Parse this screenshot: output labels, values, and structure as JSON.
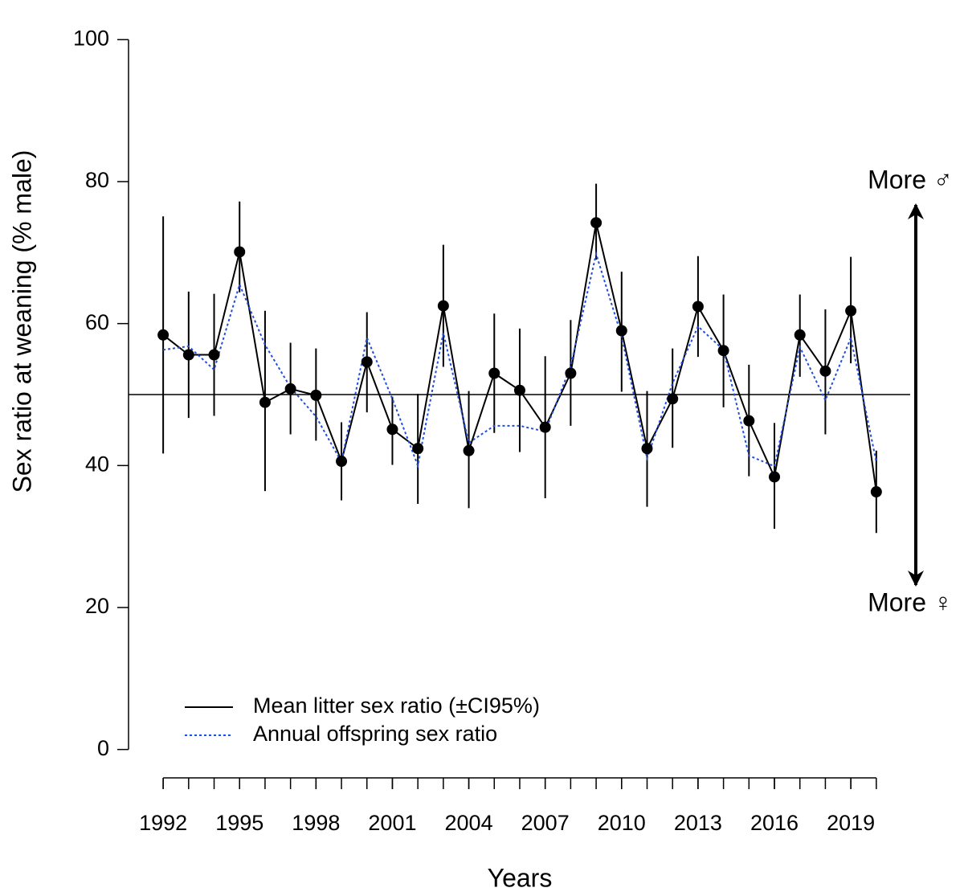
{
  "chart_data": {
    "type": "line",
    "y_label": "Sex ratio at weaning (% male)",
    "x_label": "Years",
    "x": [
      1992,
      1993,
      1994,
      1995,
      1996,
      1997,
      1998,
      1999,
      2000,
      2001,
      2002,
      2003,
      2004,
      2005,
      2006,
      2007,
      2008,
      2009,
      2010,
      2011,
      2012,
      2013,
      2014,
      2015,
      2016,
      2017,
      2018,
      2019,
      2020
    ],
    "series": [
      {
        "name": "Mean litter sex ratio (±CI95%)",
        "color": "#000000",
        "dash": "solid",
        "markers": true,
        "values": [
          58.4,
          55.6,
          55.6,
          70.1,
          48.9,
          50.8,
          49.9,
          40.6,
          54.6,
          45.1,
          42.4,
          62.5,
          42.1,
          53.0,
          50.6,
          45.4,
          53.0,
          74.2,
          59.0,
          42.4,
          49.4,
          62.4,
          56.2,
          46.3,
          38.4,
          58.4,
          53.3,
          61.8,
          36.3
        ],
        "lower": [
          41.7,
          46.7,
          47.0,
          64.4,
          36.4,
          44.4,
          43.5,
          35.1,
          47.5,
          40.1,
          34.6,
          53.9,
          34.0,
          44.6,
          41.9,
          35.4,
          45.6,
          69.0,
          50.4,
          34.2,
          42.5,
          55.3,
          48.2,
          38.5,
          31.1,
          52.5,
          44.4,
          54.4,
          30.5
        ],
        "upper": [
          75.1,
          64.5,
          64.2,
          77.2,
          61.8,
          57.3,
          56.5,
          46.1,
          61.6,
          49.7,
          50.1,
          71.1,
          50.5,
          61.4,
          59.3,
          55.4,
          60.5,
          79.7,
          67.3,
          50.5,
          56.5,
          69.5,
          64.1,
          54.2,
          46.0,
          64.1,
          62.0,
          69.4,
          42.1
        ]
      },
      {
        "name": "Annual offspring sex ratio",
        "color": "#1f4fe0",
        "dash": "dotted",
        "markers": false,
        "values": [
          56.3,
          56.8,
          53.5,
          65.5,
          57.0,
          51.0,
          46.9,
          40.5,
          58.0,
          49.4,
          40.0,
          58.7,
          43.2,
          45.6,
          45.6,
          44.8,
          54.0,
          69.8,
          58.2,
          41.0,
          51.6,
          59.6,
          56.3,
          41.4,
          39.9,
          56.7,
          49.2,
          58.0,
          40.5
        ]
      }
    ],
    "hline": 50,
    "xlim": [
      1990.64,
      2021.33
    ],
    "ylim": [
      -4,
      104
    ],
    "xticks": [
      1992,
      1995,
      1998,
      2001,
      2004,
      2007,
      2010,
      2013,
      2016,
      2019
    ],
    "yticks": [
      0,
      20,
      40,
      60,
      80,
      100
    ],
    "legend": "bottomleft",
    "annotations": [
      "More ♂",
      "More ♀"
    ]
  }
}
